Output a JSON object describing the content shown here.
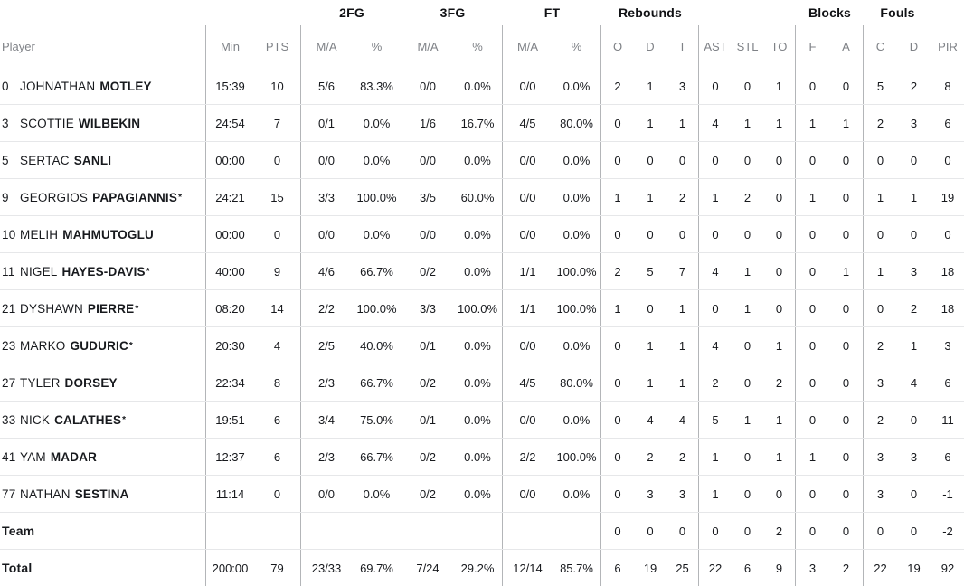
{
  "table": {
    "groups": {
      "fg2": "2FG",
      "fg3": "3FG",
      "ft": "FT",
      "rebounds": "Rebounds",
      "blocks": "Blocks",
      "fouls": "Fouls"
    },
    "columns": {
      "player": "Player",
      "min": "Min",
      "pts": "PTS",
      "ma": "M/A",
      "pct": "%",
      "o": "O",
      "d": "D",
      "t": "T",
      "ast": "AST",
      "stl": "STL",
      "to": "TO",
      "f": "F",
      "a": "A",
      "c": "C",
      "d2": "D",
      "pir": "PIR"
    },
    "players": [
      {
        "number": "0",
        "first": "JOHNATHAN",
        "last": "MOTLEY",
        "starter": false,
        "min": "15:39",
        "pts": "10",
        "fg2_ma": "5/6",
        "fg2_pct": "83.3%",
        "fg3_ma": "0/0",
        "fg3_pct": "0.0%",
        "ft_ma": "0/0",
        "ft_pct": "0.0%",
        "o": "2",
        "d": "1",
        "t": "3",
        "ast": "0",
        "stl": "0",
        "to": "1",
        "f": "0",
        "a": "0",
        "c": "5",
        "d2": "2",
        "pir": "8"
      },
      {
        "number": "3",
        "first": "SCOTTIE",
        "last": "WILBEKIN",
        "starter": false,
        "min": "24:54",
        "pts": "7",
        "fg2_ma": "0/1",
        "fg2_pct": "0.0%",
        "fg3_ma": "1/6",
        "fg3_pct": "16.7%",
        "ft_ma": "4/5",
        "ft_pct": "80.0%",
        "o": "0",
        "d": "1",
        "t": "1",
        "ast": "4",
        "stl": "1",
        "to": "1",
        "f": "1",
        "a": "1",
        "c": "2",
        "d2": "3",
        "pir": "6"
      },
      {
        "number": "5",
        "first": "SERTAC",
        "last": "SANLI",
        "starter": false,
        "min": "00:00",
        "pts": "0",
        "fg2_ma": "0/0",
        "fg2_pct": "0.0%",
        "fg3_ma": "0/0",
        "fg3_pct": "0.0%",
        "ft_ma": "0/0",
        "ft_pct": "0.0%",
        "o": "0",
        "d": "0",
        "t": "0",
        "ast": "0",
        "stl": "0",
        "to": "0",
        "f": "0",
        "a": "0",
        "c": "0",
        "d2": "0",
        "pir": "0"
      },
      {
        "number": "9",
        "first": "GEORGIOS",
        "last": "PAPAGIANNIS",
        "starter": true,
        "min": "24:21",
        "pts": "15",
        "fg2_ma": "3/3",
        "fg2_pct": "100.0%",
        "fg3_ma": "3/5",
        "fg3_pct": "60.0%",
        "ft_ma": "0/0",
        "ft_pct": "0.0%",
        "o": "1",
        "d": "1",
        "t": "2",
        "ast": "1",
        "stl": "2",
        "to": "0",
        "f": "1",
        "a": "0",
        "c": "1",
        "d2": "1",
        "pir": "19"
      },
      {
        "number": "10",
        "first": "MELIH",
        "last": "MAHMUTOGLU",
        "starter": false,
        "min": "00:00",
        "pts": "0",
        "fg2_ma": "0/0",
        "fg2_pct": "0.0%",
        "fg3_ma": "0/0",
        "fg3_pct": "0.0%",
        "ft_ma": "0/0",
        "ft_pct": "0.0%",
        "o": "0",
        "d": "0",
        "t": "0",
        "ast": "0",
        "stl": "0",
        "to": "0",
        "f": "0",
        "a": "0",
        "c": "0",
        "d2": "0",
        "pir": "0"
      },
      {
        "number": "11",
        "first": "NIGEL",
        "last": "HAYES-DAVIS",
        "starter": true,
        "min": "40:00",
        "pts": "9",
        "fg2_ma": "4/6",
        "fg2_pct": "66.7%",
        "fg3_ma": "0/2",
        "fg3_pct": "0.0%",
        "ft_ma": "1/1",
        "ft_pct": "100.0%",
        "o": "2",
        "d": "5",
        "t": "7",
        "ast": "4",
        "stl": "1",
        "to": "0",
        "f": "0",
        "a": "1",
        "c": "1",
        "d2": "3",
        "pir": "18"
      },
      {
        "number": "21",
        "first": "DYSHAWN",
        "last": "PIERRE",
        "starter": true,
        "min": "08:20",
        "pts": "14",
        "fg2_ma": "2/2",
        "fg2_pct": "100.0%",
        "fg3_ma": "3/3",
        "fg3_pct": "100.0%",
        "ft_ma": "1/1",
        "ft_pct": "100.0%",
        "o": "1",
        "d": "0",
        "t": "1",
        "ast": "0",
        "stl": "1",
        "to": "0",
        "f": "0",
        "a": "0",
        "c": "0",
        "d2": "2",
        "pir": "18"
      },
      {
        "number": "23",
        "first": "MARKO",
        "last": "GUDURIC",
        "starter": true,
        "min": "20:30",
        "pts": "4",
        "fg2_ma": "2/5",
        "fg2_pct": "40.0%",
        "fg3_ma": "0/1",
        "fg3_pct": "0.0%",
        "ft_ma": "0/0",
        "ft_pct": "0.0%",
        "o": "0",
        "d": "1",
        "t": "1",
        "ast": "4",
        "stl": "0",
        "to": "1",
        "f": "0",
        "a": "0",
        "c": "2",
        "d2": "1",
        "pir": "3"
      },
      {
        "number": "27",
        "first": "TYLER",
        "last": "DORSEY",
        "starter": false,
        "min": "22:34",
        "pts": "8",
        "fg2_ma": "2/3",
        "fg2_pct": "66.7%",
        "fg3_ma": "0/2",
        "fg3_pct": "0.0%",
        "ft_ma": "4/5",
        "ft_pct": "80.0%",
        "o": "0",
        "d": "1",
        "t": "1",
        "ast": "2",
        "stl": "0",
        "to": "2",
        "f": "0",
        "a": "0",
        "c": "3",
        "d2": "4",
        "pir": "6"
      },
      {
        "number": "33",
        "first": "NICK",
        "last": "CALATHES",
        "starter": true,
        "min": "19:51",
        "pts": "6",
        "fg2_ma": "3/4",
        "fg2_pct": "75.0%",
        "fg3_ma": "0/1",
        "fg3_pct": "0.0%",
        "ft_ma": "0/0",
        "ft_pct": "0.0%",
        "o": "0",
        "d": "4",
        "t": "4",
        "ast": "5",
        "stl": "1",
        "to": "1",
        "f": "0",
        "a": "0",
        "c": "2",
        "d2": "0",
        "pir": "11"
      },
      {
        "number": "41",
        "first": "YAM",
        "last": "MADAR",
        "starter": false,
        "min": "12:37",
        "pts": "6",
        "fg2_ma": "2/3",
        "fg2_pct": "66.7%",
        "fg3_ma": "0/2",
        "fg3_pct": "0.0%",
        "ft_ma": "2/2",
        "ft_pct": "100.0%",
        "o": "0",
        "d": "2",
        "t": "2",
        "ast": "1",
        "stl": "0",
        "to": "1",
        "f": "1",
        "a": "0",
        "c": "3",
        "d2": "3",
        "pir": "6"
      },
      {
        "number": "77",
        "first": "NATHAN",
        "last": "SESTINA",
        "starter": false,
        "min": "11:14",
        "pts": "0",
        "fg2_ma": "0/0",
        "fg2_pct": "0.0%",
        "fg3_ma": "0/2",
        "fg3_pct": "0.0%",
        "ft_ma": "0/0",
        "ft_pct": "0.0%",
        "o": "0",
        "d": "3",
        "t": "3",
        "ast": "1",
        "stl": "0",
        "to": "0",
        "f": "0",
        "a": "0",
        "c": "3",
        "d2": "0",
        "pir": "-1"
      }
    ],
    "team_row": {
      "label": "Team",
      "min": "",
      "pts": "",
      "fg2_ma": "",
      "fg2_pct": "",
      "fg3_ma": "",
      "fg3_pct": "",
      "ft_ma": "",
      "ft_pct": "",
      "o": "0",
      "d": "0",
      "t": "0",
      "ast": "0",
      "stl": "0",
      "to": "2",
      "f": "0",
      "a": "0",
      "c": "0",
      "d2": "0",
      "pir": "-2"
    },
    "total_row": {
      "label": "Total",
      "min": "200:00",
      "pts": "79",
      "fg2_ma": "23/33",
      "fg2_pct": "69.7%",
      "fg3_ma": "7/24",
      "fg3_pct": "29.2%",
      "ft_ma": "12/14",
      "ft_pct": "85.7%",
      "o": "6",
      "d": "19",
      "t": "25",
      "ast": "22",
      "stl": "6",
      "to": "9",
      "f": "3",
      "a": "2",
      "c": "22",
      "d2": "19",
      "pir": "92"
    }
  },
  "colors": {
    "header_text": "#7f8287",
    "body_text": "#17191d",
    "vertical_divider": "#b3b5b8",
    "row_separator": "#e6e7e9",
    "background": "#ffffff"
  }
}
